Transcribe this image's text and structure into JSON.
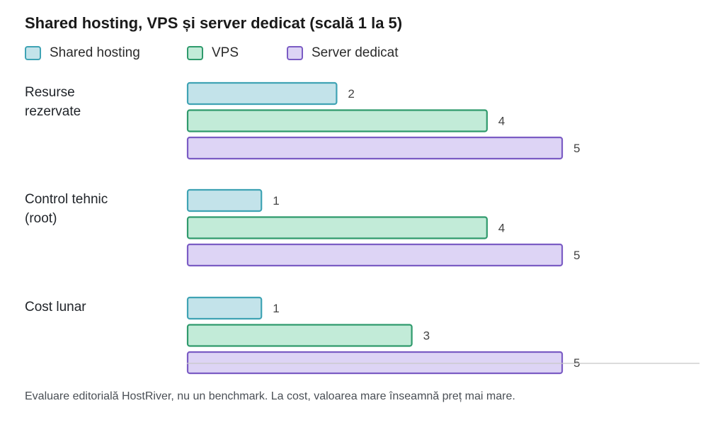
{
  "chart_data": {
    "type": "bar",
    "orientation": "horizontal",
    "title": "Shared hosting, VPS și server dedicat (scală 1 la 5)",
    "categories": [
      "Resurse\nrezervate",
      "Control tehnic\n(root)",
      "Cost lunar"
    ],
    "series": [
      {
        "name": "Shared hosting",
        "values": [
          2,
          1,
          1
        ],
        "fill": "#c3e3ea",
        "stroke": "#3fa3b4"
      },
      {
        "name": "VPS",
        "values": [
          4,
          4,
          3
        ],
        "fill": "#c2ebd8",
        "stroke": "#2f9a6c"
      },
      {
        "name": "Server dedicat",
        "values": [
          5,
          5,
          5
        ],
        "fill": "#ddd4f5",
        "stroke": "#7b5cc4"
      }
    ],
    "xlim": [
      0,
      5
    ],
    "grid": false,
    "legend": "top-left",
    "footnote": "Evaluare editorială HostRiver, nu un benchmark. La cost, valoarea mare înseamnă preț mai mare."
  }
}
